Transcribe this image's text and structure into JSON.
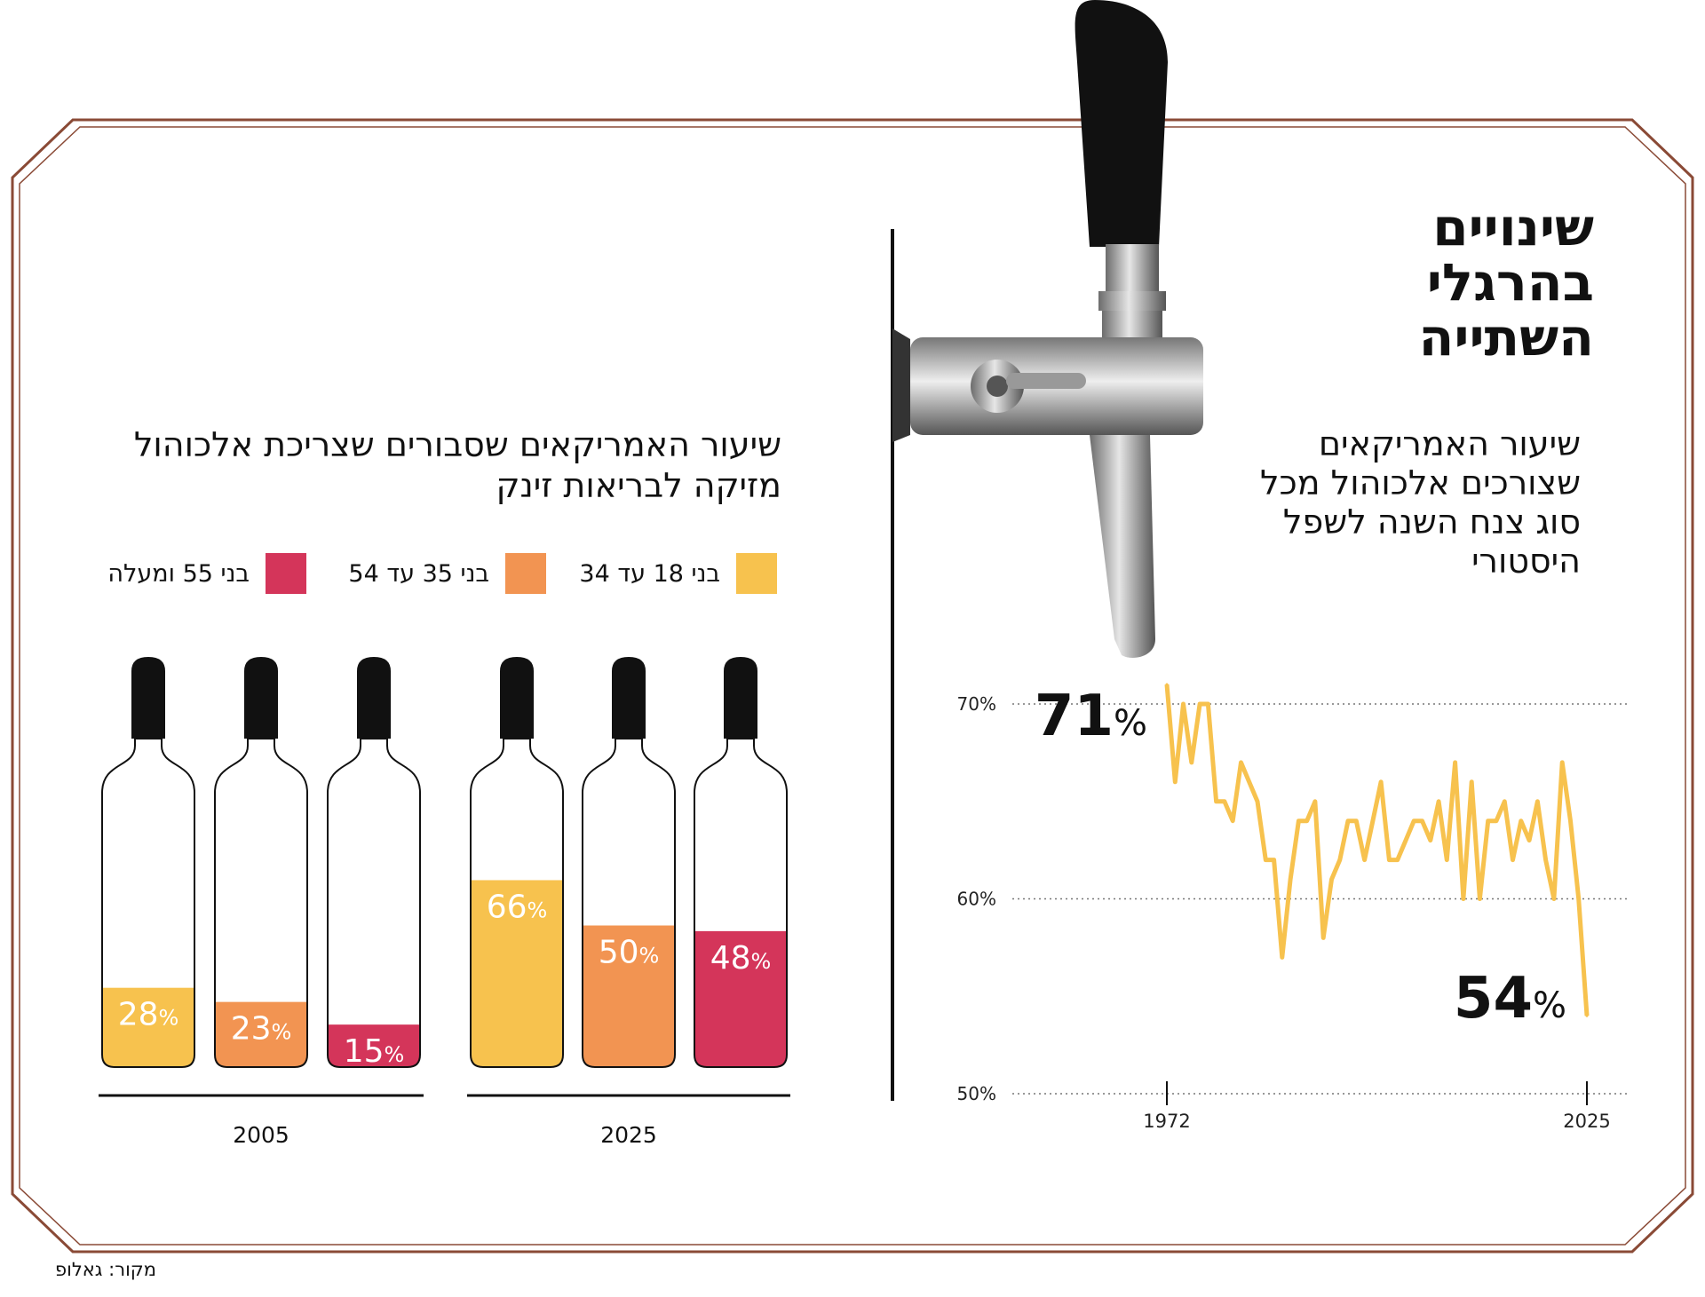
{
  "title": "שינויים בהרגלי השתייה",
  "line_subtitle": "שיעור האמריקאים שצורכים אלכוהול מכל סוג צנח השנה לשפל היסטורי",
  "bar_subtitle": "שיעור האמריקאים שסבורים שצריכת אלכוהול מזיקה לבריאות זינק",
  "source": "מקור: גאלופ",
  "colors": {
    "frame": "#8a4a36",
    "line": "#f7c24e",
    "age18_34": "#f7c24e",
    "age35_54": "#f29452",
    "age55_plus": "#d4355a"
  },
  "legend": [
    {
      "label": "בני 18 עד 34",
      "color": "#f7c24e"
    },
    {
      "label": "בני 35 עד 54",
      "color": "#f29452"
    },
    {
      "label": "בני 55 ומעלה",
      "color": "#d4355a"
    }
  ],
  "chart_data": [
    {
      "type": "line",
      "x_ticks": [
        "1972",
        "2025"
      ],
      "y_ticks": [
        "70%",
        "60%",
        "50%"
      ],
      "ylim": [
        50,
        72
      ],
      "grid": true,
      "annotations": {
        "start": "71",
        "end": "54",
        "unit": "%"
      },
      "series": [
        {
          "values": [
            71,
            66,
            70,
            67,
            70,
            70,
            65,
            65,
            64,
            67,
            66,
            65,
            62,
            62,
            57,
            61,
            64,
            64,
            65,
            58,
            61,
            62,
            64,
            64,
            62,
            64,
            66,
            62,
            62,
            63,
            64,
            64,
            63,
            65,
            62,
            67,
            60,
            66,
            60,
            64,
            64,
            65,
            62,
            64,
            63,
            65,
            62,
            60,
            67,
            64,
            60,
            54
          ]
        }
      ]
    },
    {
      "type": "bar",
      "groups": [
        "2005",
        "2025"
      ],
      "series": [
        {
          "name": "בני 18 עד 34",
          "values": [
            28,
            66
          ]
        },
        {
          "name": "בני 35 עד 54",
          "values": [
            23,
            50
          ]
        },
        {
          "name": "בני 55 ומעלה",
          "values": [
            15,
            48
          ]
        }
      ],
      "labels": {
        "2005": [
          "28",
          "23",
          "15"
        ],
        "2025": [
          "66",
          "50",
          "48"
        ]
      },
      "unit": "%"
    }
  ]
}
